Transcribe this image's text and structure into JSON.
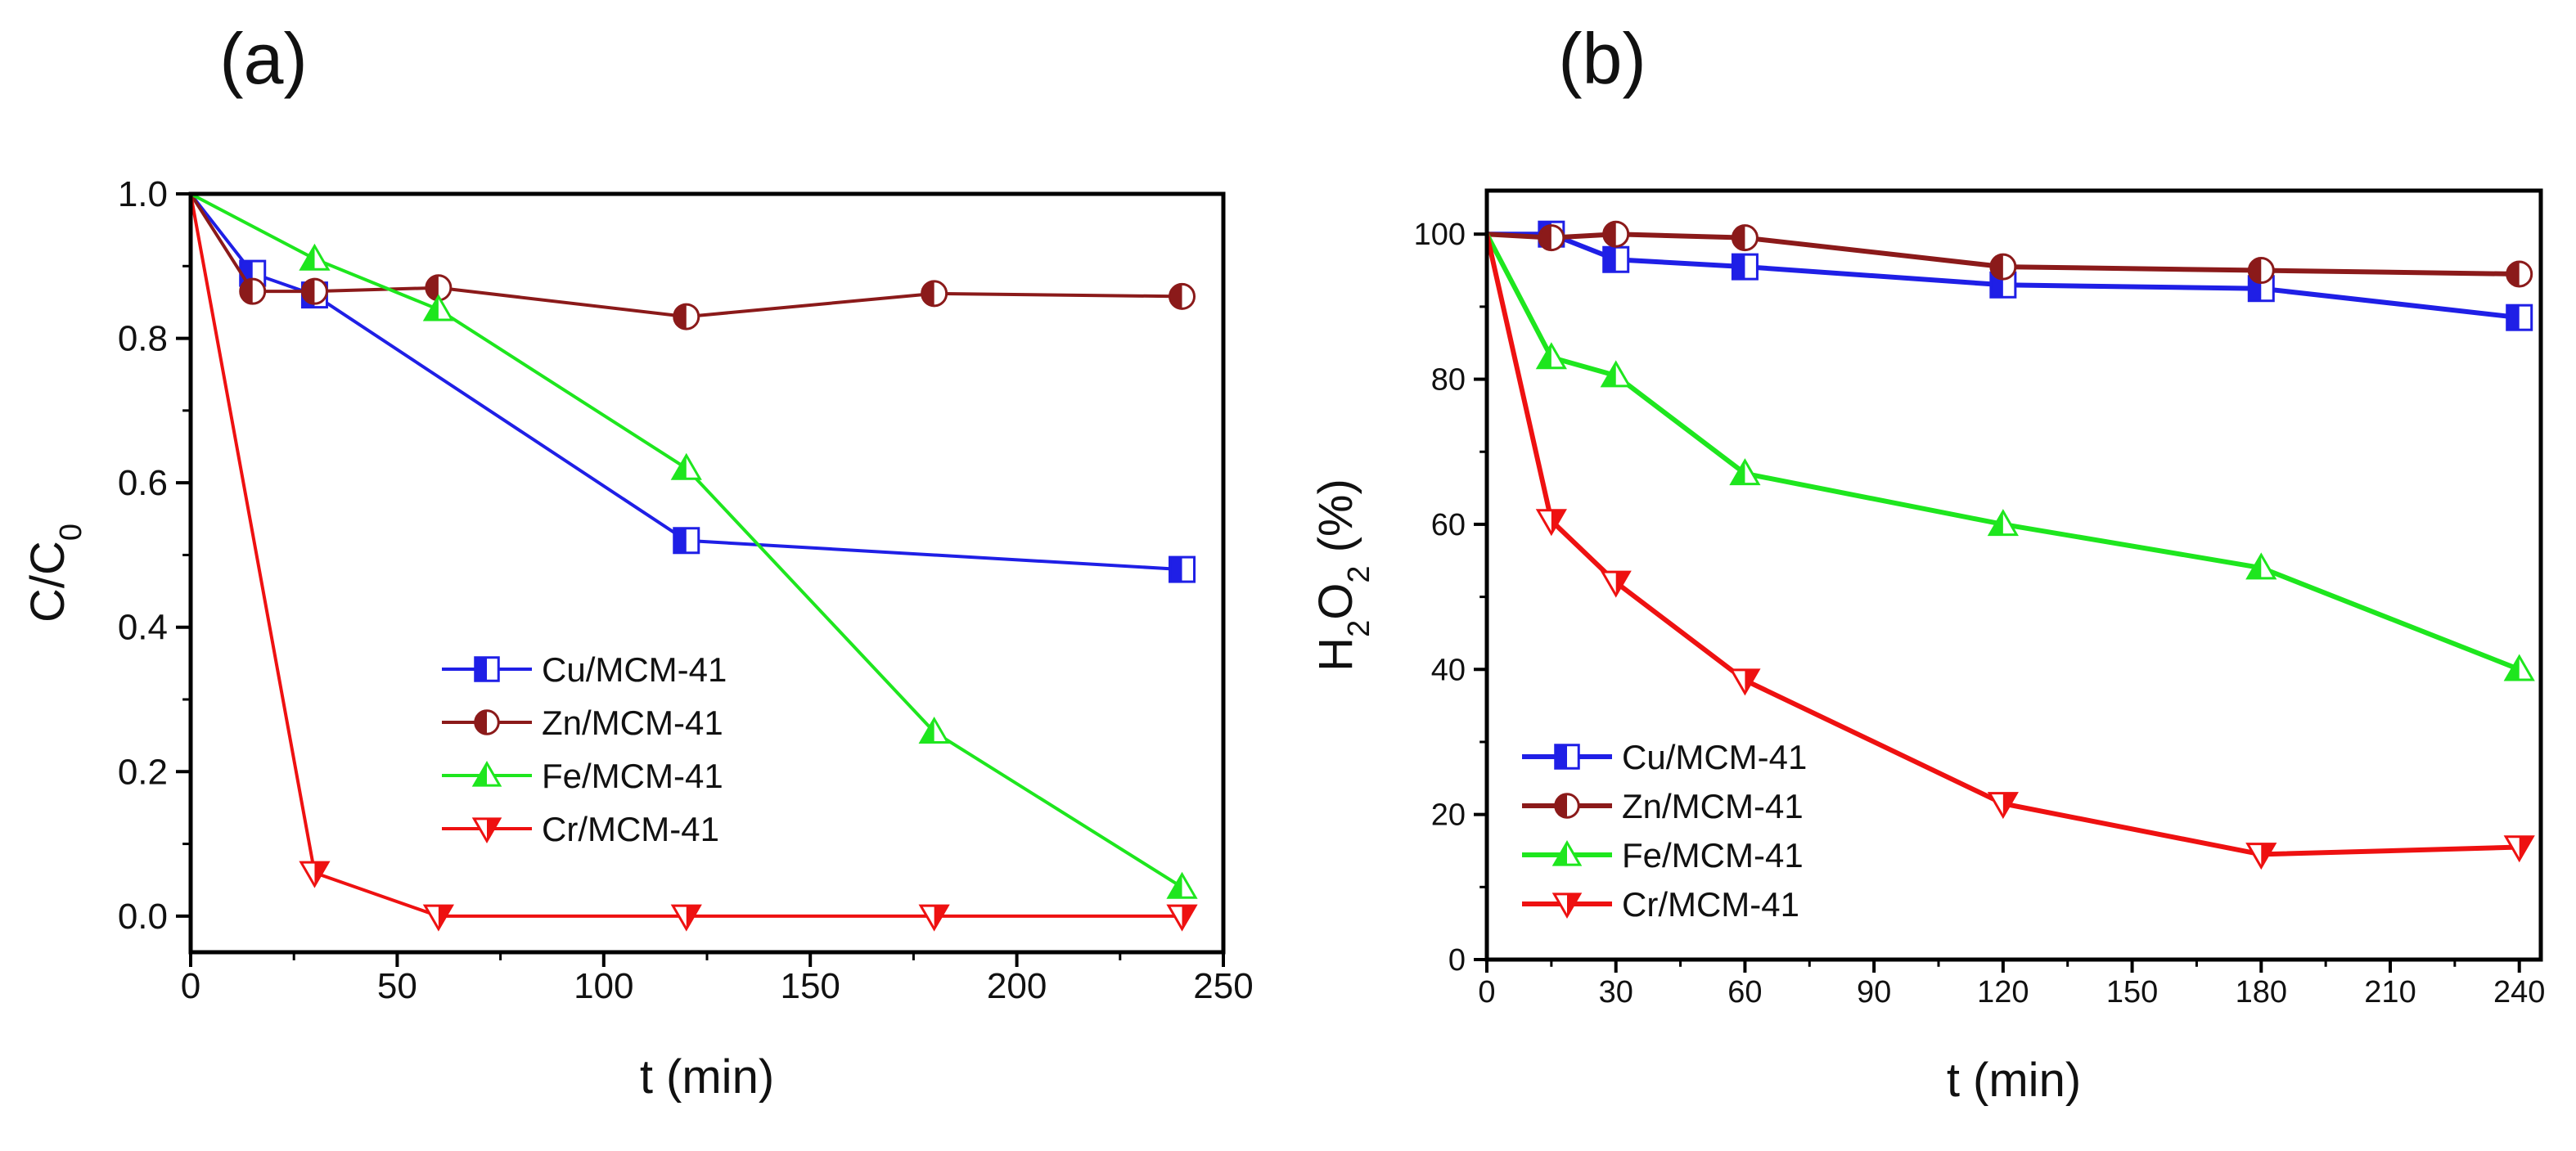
{
  "chart_data": [
    {
      "type": "line",
      "panel_label": "(a)",
      "xlabel": "t (min)",
      "ylabel": "C/C",
      "ylabel_sub": "0",
      "xlim": [
        0,
        250
      ],
      "ylim": [
        -0.05,
        1.0
      ],
      "xticks": [
        0,
        50,
        100,
        150,
        200,
        250
      ],
      "xtick_labels": [
        "0",
        "50",
        "100",
        "150",
        "200",
        "250"
      ],
      "yticks": [
        0.0,
        0.2,
        0.4,
        0.6,
        0.8,
        1.0
      ],
      "ytick_labels": [
        "0.0",
        "0.2",
        "0.4",
        "0.6",
        "0.8",
        "1.0"
      ],
      "legend_position": "lower-center",
      "series": [
        {
          "name": "Cu/MCM-41",
          "color": "#1f1fe6",
          "marker": "square-half",
          "x": [
            0,
            15,
            30,
            120,
            240
          ],
          "y": [
            1.0,
            0.89,
            0.86,
            0.52,
            0.48
          ]
        },
        {
          "name": "Zn/MCM-41",
          "color": "#8b1a1a",
          "marker": "circle-half",
          "x": [
            0,
            15,
            30,
            60,
            120,
            180,
            240
          ],
          "y": [
            1.0,
            0.865,
            0.865,
            0.87,
            0.83,
            0.862,
            0.858
          ]
        },
        {
          "name": "Fe/MCM-41",
          "color": "#1ee61e",
          "marker": "triangle-up-half",
          "x": [
            0,
            30,
            60,
            120,
            180,
            240
          ],
          "y": [
            1.0,
            0.91,
            0.84,
            0.62,
            0.255,
            0.04
          ]
        },
        {
          "name": "Cr/MCM-41",
          "color": "#ee1111",
          "marker": "triangle-down-half",
          "x": [
            0,
            30,
            60,
            120,
            180,
            240
          ],
          "y": [
            1.0,
            0.06,
            0.0,
            0.0,
            0.0,
            0.0
          ]
        }
      ]
    },
    {
      "type": "line",
      "panel_label": "(b)",
      "xlabel": "t (min)",
      "ylabel_parts": [
        "H",
        "2",
        "O",
        "2",
        " (%)"
      ],
      "xlim": [
        0,
        245
      ],
      "ylim": [
        0,
        106
      ],
      "xticks": [
        0,
        30,
        60,
        90,
        120,
        150,
        180,
        210,
        240
      ],
      "xtick_labels": [
        "0",
        "30",
        "60",
        "90",
        "120",
        "150",
        "180",
        "210",
        "240"
      ],
      "yticks": [
        0,
        20,
        40,
        60,
        80,
        100
      ],
      "ytick_labels": [
        "0",
        "20",
        "40",
        "60",
        "80",
        "100"
      ],
      "legend_position": "lower-left",
      "series": [
        {
          "name": "Cu/MCM-41",
          "color": "#1f1fe6",
          "marker": "square-half",
          "x": [
            0,
            15,
            30,
            60,
            120,
            180,
            240
          ],
          "y": [
            100,
            100,
            96.5,
            95.5,
            93,
            92.5,
            88.5
          ]
        },
        {
          "name": "Zn/MCM-41",
          "color": "#8b1a1a",
          "marker": "circle-half",
          "x": [
            0,
            15,
            30,
            60,
            120,
            180,
            240
          ],
          "y": [
            100,
            99.5,
            100,
            99.5,
            95.5,
            95,
            94.5
          ]
        },
        {
          "name": "Fe/MCM-41",
          "color": "#1ee61e",
          "marker": "triangle-up-half",
          "x": [
            0,
            15,
            30,
            60,
            120,
            180,
            240
          ],
          "y": [
            100,
            83,
            80.5,
            67,
            60,
            54,
            40
          ]
        },
        {
          "name": "Cr/MCM-41",
          "color": "#ee1111",
          "marker": "triangle-down-half",
          "x": [
            0,
            15,
            30,
            60,
            120,
            180,
            240
          ],
          "y": [
            100,
            60.5,
            52,
            38.5,
            21.5,
            14.5,
            15.5
          ]
        }
      ]
    }
  ]
}
